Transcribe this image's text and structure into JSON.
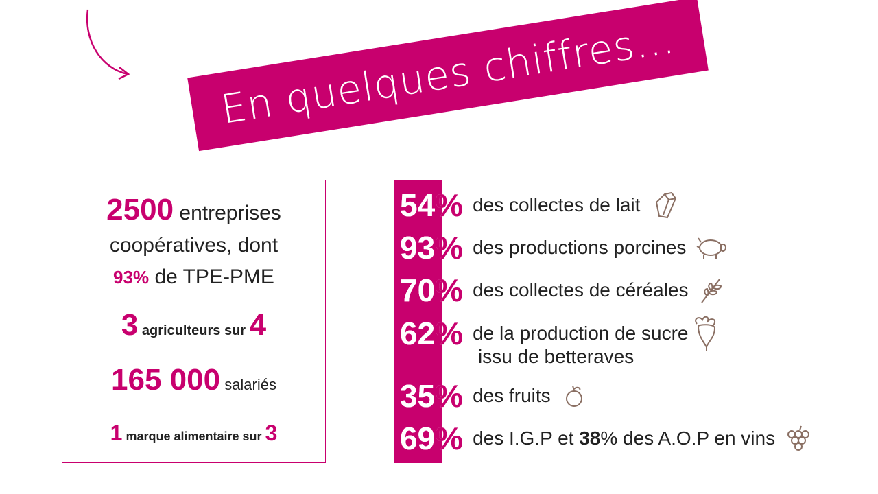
{
  "title": "En quelques chiffres…",
  "left": {
    "line1_num": "2500",
    "line1_text": "entreprises",
    "line2_text": "coopératives, dont",
    "line3_num": "93%",
    "line3_text": "de TPE-PME",
    "line4_num1": "3",
    "line4_text": "agriculteurs sur",
    "line4_num2": "4",
    "line5_num": "165 000",
    "line5_text": "salariés",
    "line6_num1": "1",
    "line6_text": "marque alimentaire sur",
    "line6_num2": "3"
  },
  "stats": [
    {
      "pct_a": "54",
      "pct_b": "%",
      "label": "des collectes de lait",
      "icon": "milk-carton-icon"
    },
    {
      "pct_a": "93",
      "pct_b": "%",
      "label": "des productions porcines",
      "icon": "pig-icon"
    },
    {
      "pct_a": "70",
      "pct_b": "%",
      "label": "des collectes de céréales",
      "icon": "wheat-icon"
    },
    {
      "pct_a": "62",
      "pct_b": "%",
      "label": "de la production de sucre",
      "label2": "issu de betteraves",
      "icon": "beet-icon"
    },
    {
      "pct_a": "35",
      "pct_b": "%",
      "label": "des fruits",
      "icon": "fruit-icon"
    },
    {
      "pct_a": "69",
      "pct_b": "%",
      "label_a": "des I.G.P et ",
      "label_b": "38",
      "label_c": "% des A.O.P en vins",
      "icon": "grapes-icon"
    }
  ],
  "colors": {
    "accent": "#c8006e",
    "icon": "#8a6f63"
  }
}
